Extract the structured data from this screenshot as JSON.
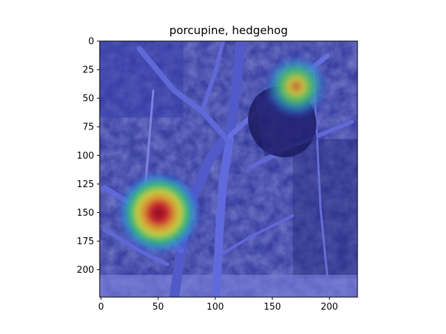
{
  "figure": {
    "title": "porcupine, hedgehog"
  },
  "chart_data": {
    "type": "heatmap",
    "title": "porcupine, hedgehog",
    "xlim": [
      0,
      224
    ],
    "ylim": [
      224,
      0
    ],
    "x_ticks": [
      0,
      50,
      100,
      150,
      200
    ],
    "y_ticks": [
      0,
      25,
      50,
      75,
      100,
      125,
      150,
      175,
      200
    ],
    "hotspots": [
      {
        "x": 48,
        "y": 150,
        "intensity": 1.0
      },
      {
        "x": 170,
        "y": 40,
        "intensity": 0.75
      }
    ],
    "colormap": "jet",
    "overlay_colors": {
      "base": "#3d3fd0",
      "hot": "#b01010"
    }
  }
}
